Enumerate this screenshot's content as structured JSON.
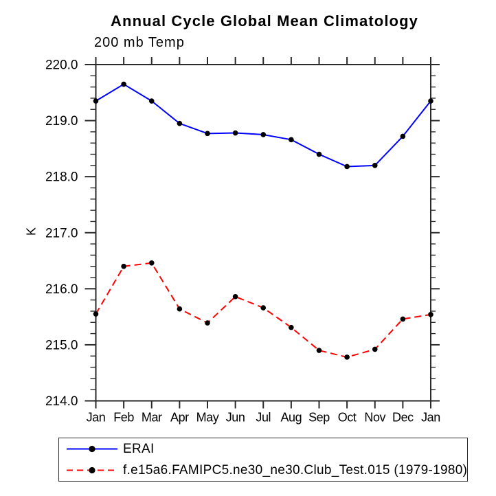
{
  "chart_data": {
    "type": "line",
    "title": "Annual Cycle Global Mean Climatology",
    "subtitle": "200 mb Temp",
    "ylabel": "K",
    "xlabel": "",
    "categories": [
      "Jan",
      "Feb",
      "Mar",
      "Apr",
      "May",
      "Jun",
      "Jul",
      "Aug",
      "Sep",
      "Oct",
      "Nov",
      "Dec",
      "Jan"
    ],
    "series": [
      {
        "name": "ERAI",
        "color": "#0000ff",
        "line_style": "solid",
        "marker": "filled-circle",
        "marker_color": "#000000",
        "values": [
          219.35,
          219.65,
          219.35,
          218.95,
          218.77,
          218.78,
          218.75,
          218.66,
          218.4,
          218.18,
          218.2,
          218.72,
          219.35
        ]
      },
      {
        "name": "f.e15a6.FAMIPC5.ne30_ne30.Club_Test.015 (1979-1980)",
        "color": "#ff0000",
        "line_style": "dashed",
        "marker": "filled-circle",
        "marker_color": "#000000",
        "values": [
          215.55,
          216.4,
          216.46,
          215.64,
          215.39,
          215.86,
          215.66,
          215.31,
          214.9,
          214.78,
          214.92,
          215.46,
          215.54
        ]
      }
    ],
    "ylim": [
      214.0,
      220.0
    ],
    "y_ticks": [
      214.0,
      215.0,
      216.0,
      217.0,
      218.0,
      219.0,
      220.0
    ],
    "y_tick_labels": [
      "214.0",
      "215.0",
      "216.0",
      "217.0",
      "218.0",
      "219.0",
      "220.0"
    ],
    "y_minor_step": 0.2,
    "grid": false,
    "legend_position": "bottom-left",
    "axis_color": "#2a2a2a"
  }
}
